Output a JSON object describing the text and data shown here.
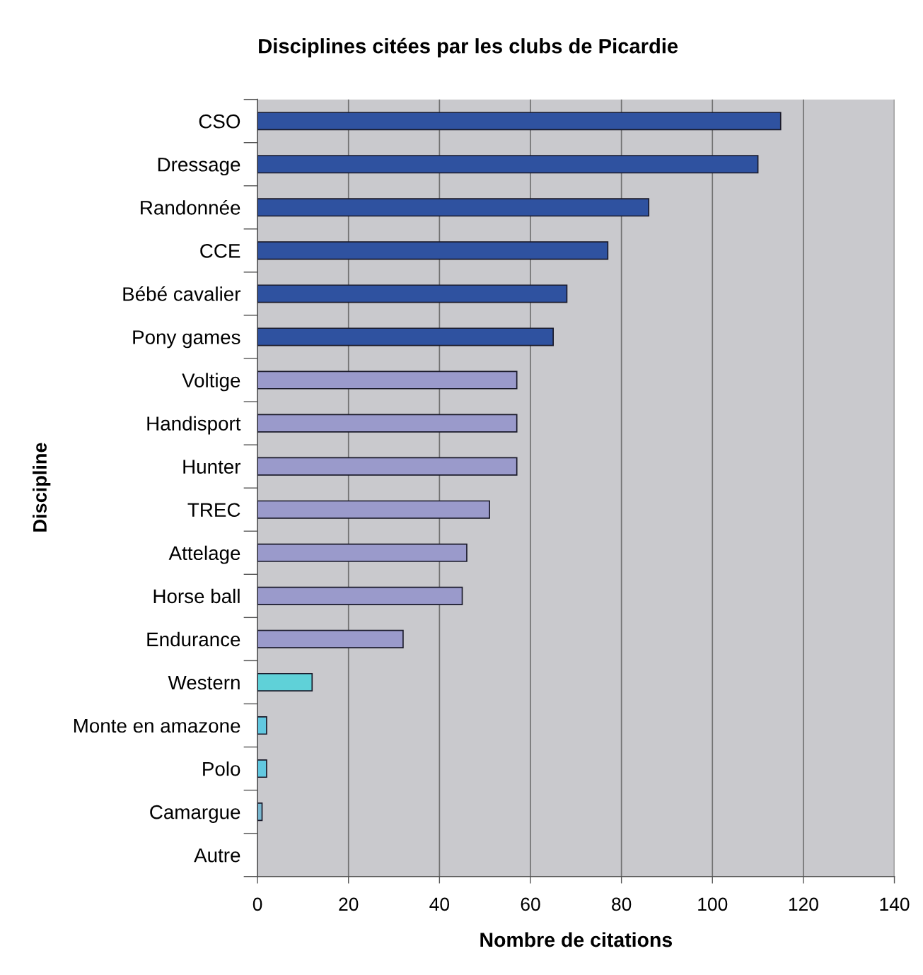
{
  "chart_data": {
    "type": "bar",
    "orientation": "horizontal",
    "title": "Disciplines citées par les clubs de Picardie",
    "xlabel": "Nombre de citations",
    "ylabel": "Discipline",
    "categories": [
      "CSO",
      "Dressage",
      "Randonnée",
      "CCE",
      "Bébé cavalier",
      "Pony games",
      "Voltige",
      "Handisport",
      "Hunter",
      "TREC",
      "Attelage",
      "Horse ball",
      "Endurance",
      "Western",
      "Monte en amazone",
      "Polo",
      "Camargue",
      "Autre"
    ],
    "values": [
      115,
      110,
      86,
      77,
      68,
      65,
      57,
      57,
      57,
      51,
      46,
      45,
      32,
      12,
      2,
      2,
      1,
      0
    ],
    "colors": [
      "#2f52a0",
      "#2f52a0",
      "#2f52a0",
      "#2f52a0",
      "#2f52a0",
      "#2f52a0",
      "#9a9acb",
      "#9a9acb",
      "#9a9acb",
      "#9a9acb",
      "#9a9acb",
      "#9a9acb",
      "#9a9acb",
      "#5fd1d8",
      "#62c8e0",
      "#62c8e0",
      "#7ab8d0",
      "#5fd1d8"
    ],
    "xlim": [
      0,
      140
    ],
    "xticks": [
      0,
      20,
      40,
      60,
      80,
      100,
      120,
      140
    ],
    "grid": "x"
  }
}
